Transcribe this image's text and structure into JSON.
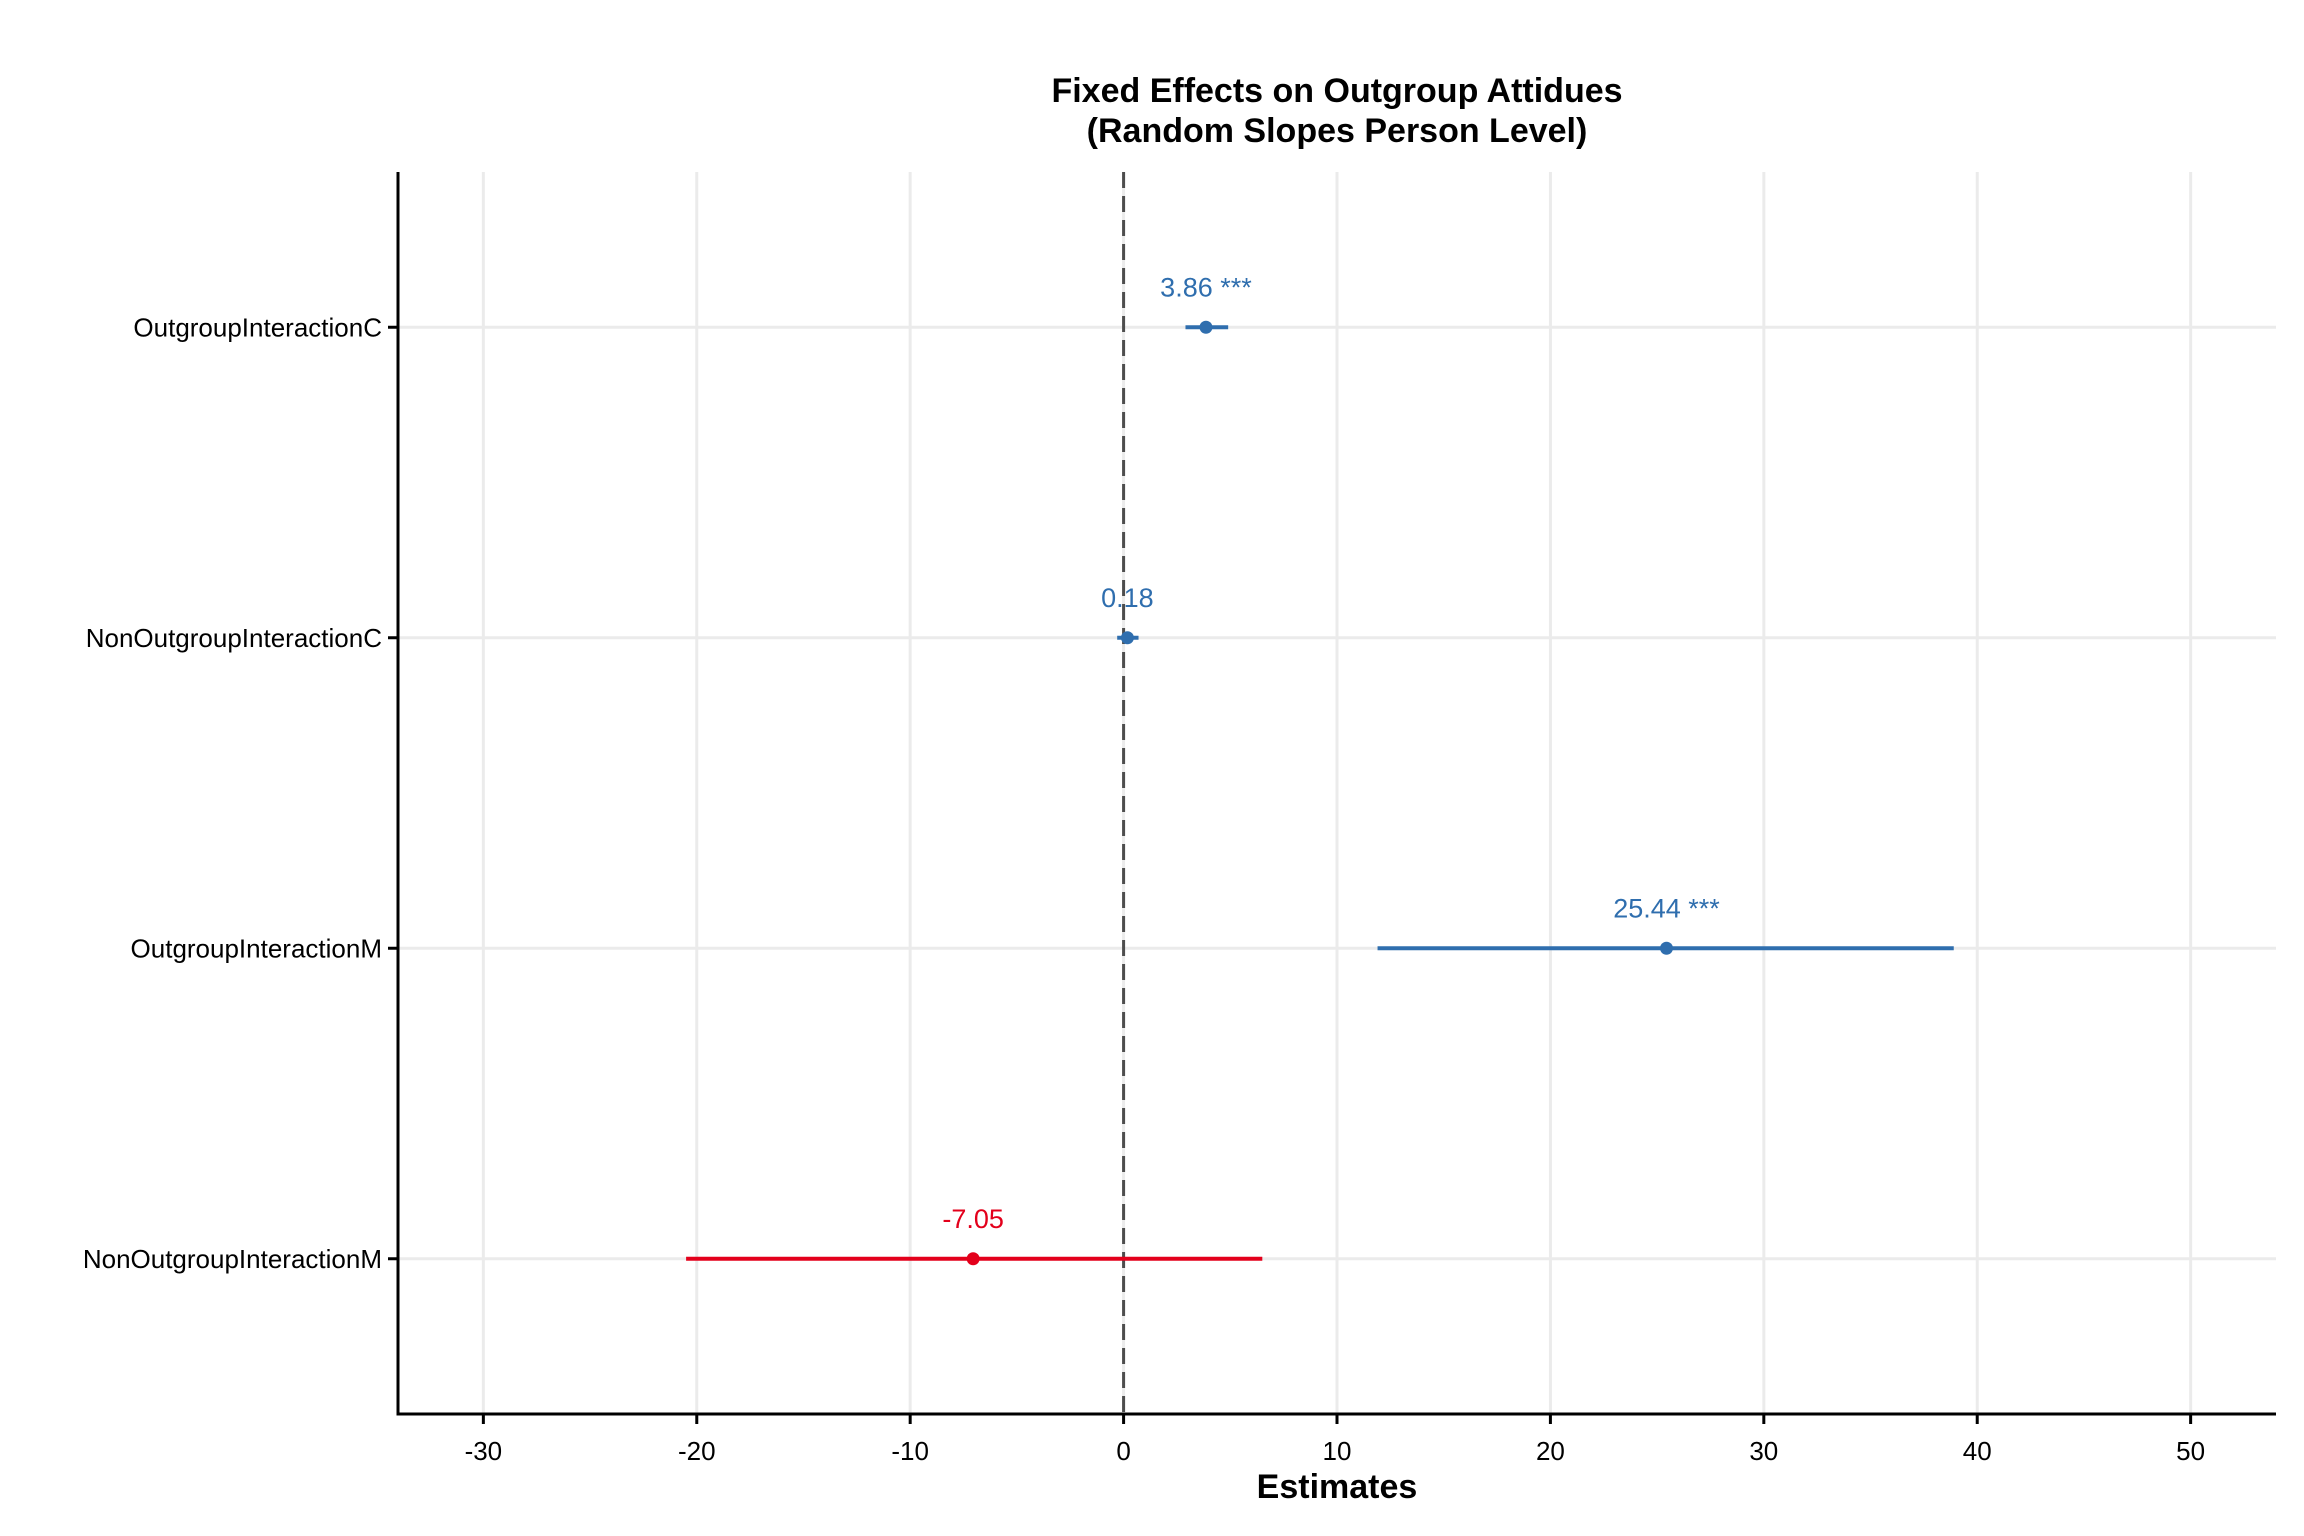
{
  "chart_data": {
    "type": "forest",
    "title": [
      "Fixed Effects on Outgroup Attidues",
      "(Random Slopes Person Level)"
    ],
    "xlabel": "Estimates",
    "xlim": [
      -34,
      54
    ],
    "xticks": [
      -30,
      -20,
      -10,
      0,
      10,
      20,
      30,
      40,
      50
    ],
    "reference_line": 0,
    "grid": true,
    "positive_color": "#2f6eae",
    "negative_color": "#e3001b",
    "terms": [
      {
        "name": "OutgroupInteractionC",
        "estimate": 3.86,
        "ci_low": 2.9,
        "ci_high": 4.9,
        "label": "3.86 ***"
      },
      {
        "name": "NonOutgroupInteractionC",
        "estimate": 0.18,
        "ci_low": -0.3,
        "ci_high": 0.7,
        "label": "0.18"
      },
      {
        "name": "OutgroupInteractionM",
        "estimate": 25.44,
        "ci_low": 11.9,
        "ci_high": 38.9,
        "label": "25.44 ***"
      },
      {
        "name": "NonOutgroupInteractionM",
        "estimate": -7.05,
        "ci_low": -20.5,
        "ci_high": 6.5,
        "label": "-7.05"
      }
    ]
  }
}
